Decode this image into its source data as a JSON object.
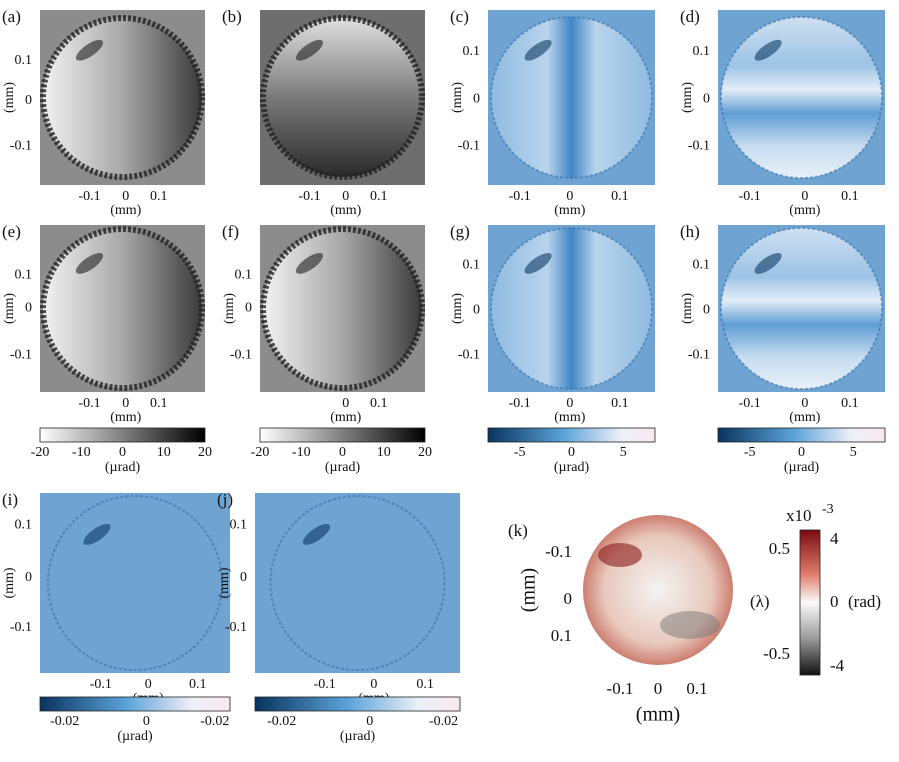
{
  "panels": [
    {
      "label": "(a)",
      "yticks": [
        "0.1",
        "0",
        "-0.1"
      ],
      "xticks": [
        "-0.1",
        "0",
        "0.1"
      ],
      "xlabel": "(mm)",
      "ylabel": "(mm)"
    },
    {
      "label": "(b)",
      "yticks": [],
      "xticks": [
        "-0.1",
        "0",
        "0.1"
      ],
      "xlabel": "(mm)"
    },
    {
      "label": "(c)",
      "yticks": [
        "0.1",
        "0",
        "-0.1"
      ],
      "xticks": [
        "-0.1",
        "0",
        "0.1"
      ],
      "xlabel": "(mm)",
      "ylabel": "(mm)"
    },
    {
      "label": "(d)",
      "yticks": [
        "0.1",
        "0",
        "-0.1"
      ],
      "xticks": [
        "-0.1",
        "0",
        "0.1"
      ],
      "xlabel": "(mm)",
      "ylabel": "(mm)"
    },
    {
      "label": "(e)",
      "yticks": [
        "0.1",
        "0",
        "-0.1"
      ],
      "xticks": [
        "-0.1",
        "0",
        "0.1"
      ],
      "xlabel": "(mm)",
      "ylabel": "(mm)"
    },
    {
      "label": "(f)",
      "yticks": [
        "0.1",
        "0",
        "-0.1"
      ],
      "xticks": [
        "0",
        "0.1"
      ],
      "xlabel": "(mm)",
      "ylabel": "(mm)"
    },
    {
      "label": "(g)",
      "yticks": [
        "0.1",
        "0",
        "-0.1"
      ],
      "xticks": [
        "-0.1",
        "0",
        "0.1"
      ],
      "xlabel": "(mm)",
      "ylabel": "(mm)"
    },
    {
      "label": "(h)",
      "yticks": [
        "0.1",
        "0",
        "-0.1"
      ],
      "xticks": [
        "-0.1",
        "0",
        "0.1"
      ],
      "xlabel": "(mm)",
      "ylabel": "(mm)"
    },
    {
      "label": "(i)",
      "yticks": [
        "0.1",
        "0",
        "-0.1"
      ],
      "xticks": [
        "-0.1",
        "0",
        "0.1"
      ],
      "xlabel": "(mm)",
      "ylabel": "(mm)"
    },
    {
      "label": "(j)",
      "yticks": [
        "0.1",
        "0",
        "-0.1"
      ],
      "xticks": [
        "-0.1",
        "0",
        "0.1"
      ],
      "xlabel": "(mm)",
      "ylabel": "(mm)"
    },
    {
      "label": "(k)",
      "yticks": [
        "-0.1",
        "0",
        "0.1"
      ],
      "xticks": [
        "-0.1",
        "0",
        "0.1"
      ],
      "xlabel": "(mm)",
      "ylabel": "(mm)"
    }
  ],
  "colorbars": [
    {
      "ticks": [
        "-20",
        "-10",
        "0",
        "10",
        "20"
      ],
      "label": "(µrad)"
    },
    {
      "ticks": [
        "-20",
        "-10",
        "0",
        "10",
        "20"
      ],
      "label": "(µrad)"
    },
    {
      "ticks": [
        "-5",
        "0",
        "5"
      ],
      "label": "(µrad)"
    },
    {
      "ticks": [
        "-5",
        "0",
        "5"
      ],
      "label": "(µrad)"
    },
    {
      "ticks": [
        "-0.02",
        "0",
        "-0.02"
      ],
      "label": "(µrad)"
    },
    {
      "ticks": [
        "-0.02",
        "0",
        "-0.02"
      ],
      "label": "(µrad)"
    }
  ],
  "k_colorbar": {
    "scale": "x10",
    "exponent": "-3",
    "left_ticks": [
      "0.5",
      "-0.5"
    ],
    "left_label": "(λ)",
    "right_ticks": [
      "4",
      "0",
      "-4"
    ],
    "right_label": "(rad)"
  }
}
